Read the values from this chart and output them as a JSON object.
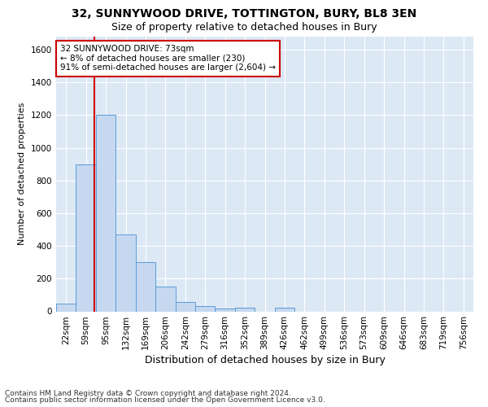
{
  "title_line1": "32, SUNNYWOOD DRIVE, TOTTINGTON, BURY, BL8 3EN",
  "title_line2": "Size of property relative to detached houses in Bury",
  "xlabel": "Distribution of detached houses by size in Bury",
  "ylabel": "Number of detached properties",
  "footer_line1": "Contains HM Land Registry data © Crown copyright and database right 2024.",
  "footer_line2": "Contains public sector information licensed under the Open Government Licence v3.0.",
  "bin_labels": [
    "22sqm",
    "59sqm",
    "95sqm",
    "132sqm",
    "169sqm",
    "206sqm",
    "242sqm",
    "279sqm",
    "316sqm",
    "352sqm",
    "389sqm",
    "426sqm",
    "462sqm",
    "499sqm",
    "536sqm",
    "573sqm",
    "609sqm",
    "646sqm",
    "683sqm",
    "719sqm",
    "756sqm"
  ],
  "bar_values": [
    45,
    900,
    1200,
    470,
    300,
    150,
    55,
    30,
    15,
    20,
    0,
    20,
    0,
    0,
    0,
    0,
    0,
    0,
    0,
    0,
    0
  ],
  "bar_color": "#c5d8f0",
  "bar_edge_color": "#5b9bd5",
  "property_line_bin_index": 1.42,
  "annotation_text": "32 SUNNYWOOD DRIVE: 73sqm\n← 8% of detached houses are smaller (230)\n91% of semi-detached houses are larger (2,604) →",
  "annotation_box_color": "#ffffff",
  "annotation_box_edge_color": "#cc0000",
  "red_line_color": "#cc0000",
  "ylim": [
    0,
    1680
  ],
  "yticks": [
    0,
    200,
    400,
    600,
    800,
    1000,
    1200,
    1400,
    1600
  ],
  "background_color": "#dde8f5",
  "grid_color": "#ffffff",
  "fig_bg_color": "#ffffff",
  "title_fontsize": 10,
  "subtitle_fontsize": 9,
  "ylabel_fontsize": 8,
  "xlabel_fontsize": 9,
  "tick_fontsize": 7.5,
  "footer_fontsize": 6.5
}
